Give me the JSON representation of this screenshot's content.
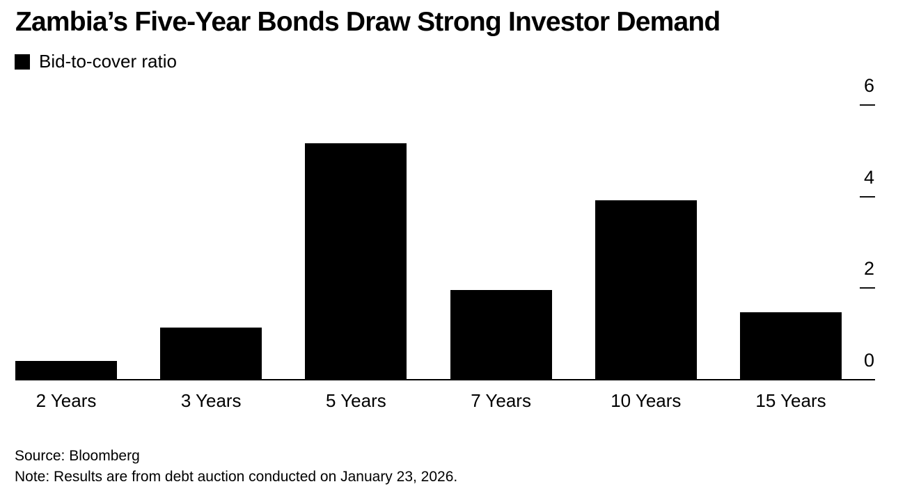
{
  "header": {
    "title": "Zambia’s Five-Year Bonds Draw Strong Investor Demand"
  },
  "legend": {
    "label": "Bid-to-cover ratio",
    "swatch_color": "#000000"
  },
  "chart_data": {
    "type": "bar",
    "title": "Zambia’s Five-Year Bonds Draw Strong Investor Demand",
    "series_name": "Bid-to-cover ratio",
    "categories": [
      "2 Years",
      "3 Years",
      "5 Years",
      "7 Years",
      "10 Years",
      "15 Years"
    ],
    "values": [
      0.41,
      1.14,
      5.17,
      1.96,
      3.92,
      1.47
    ],
    "xlabel": "",
    "ylabel": "",
    "ylim": [
      0,
      6
    ],
    "yticks": [
      0,
      2,
      4,
      6
    ],
    "ytick_side": "right",
    "bar_color": "#000000",
    "grid": false,
    "legend_position": "top-left"
  },
  "footer": {
    "source": "Source: Bloomberg",
    "note": "Note: Results are from debt auction conducted on January 23, 2026."
  }
}
